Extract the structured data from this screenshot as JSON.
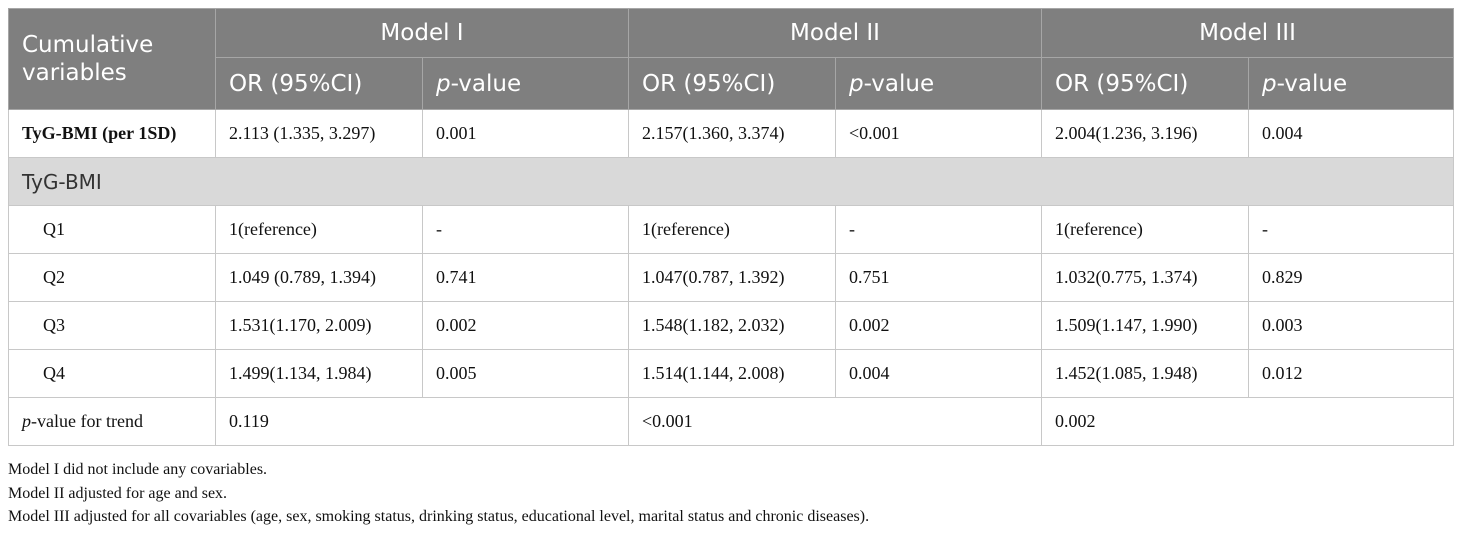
{
  "header": {
    "cumulative_line1": "Cumulative",
    "cumulative_line2": "variables",
    "models": [
      "Model I",
      "Model II",
      "Model III"
    ],
    "or_label": "OR (95%CI)",
    "p_italic": "p",
    "p_suffix": "-value"
  },
  "rows": {
    "per_sd": {
      "label": "TyG-BMI (per 1SD)",
      "cells": [
        "2.113 (1.335, 3.297)",
        "0.001",
        "2.157(1.360, 3.374)",
        "<0.001",
        "2.004(1.236, 3.196)",
        "0.004"
      ]
    },
    "section_label": "TyG-BMI",
    "quartiles": [
      {
        "label": "Q1",
        "cells": [
          "1(reference)",
          "-",
          "1(reference)",
          "-",
          "1(reference)",
          "-"
        ]
      },
      {
        "label": "Q2",
        "cells": [
          "1.049 (0.789, 1.394)",
          "0.741",
          "1.047(0.787, 1.392)",
          "0.751",
          "1.032(0.775, 1.374)",
          "0.829"
        ]
      },
      {
        "label": "Q3",
        "cells": [
          "1.531(1.170, 2.009)",
          "0.002",
          "1.548(1.182, 2.032)",
          "0.002",
          "1.509(1.147, 1.990)",
          "0.003"
        ]
      },
      {
        "label": "Q4",
        "cells": [
          "1.499(1.134, 1.984)",
          "0.005",
          "1.514(1.144, 2.008)",
          "0.004",
          "1.452(1.085, 1.948)",
          "0.012"
        ]
      }
    ],
    "trend": {
      "label_italic": "p",
      "label_rest": "-value for trend",
      "values": [
        "0.119",
        "<0.001",
        "0.002"
      ]
    }
  },
  "footnotes": [
    "Model I did not include any covariables.",
    "Model II adjusted for age and sex.",
    "Model III adjusted for all covariables (age, sex, smoking status, drinking status, educational level, marital status and chronic diseases)."
  ]
}
